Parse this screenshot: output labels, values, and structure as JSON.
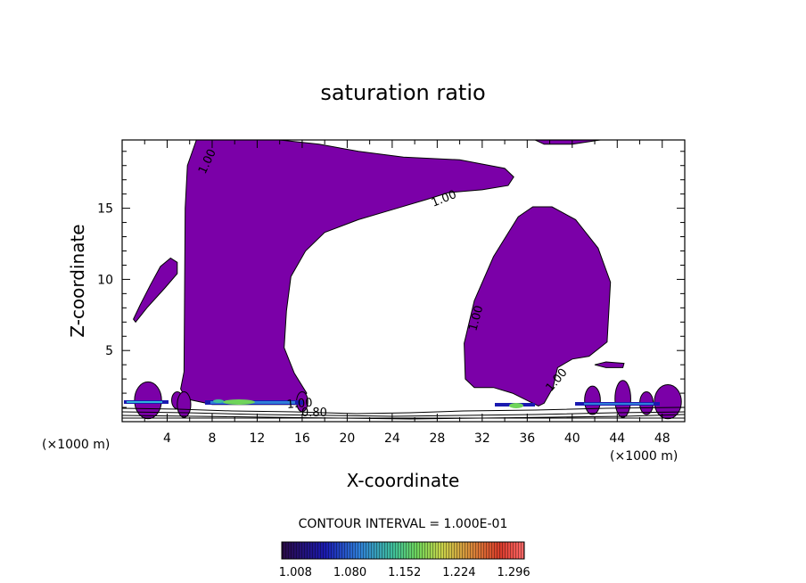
{
  "chart_data": {
    "type": "contour",
    "title": "saturation ratio",
    "xlabel": "X-coordinate",
    "ylabel": "Z-coordinate",
    "x_unit": "(×1000 m)",
    "z_unit": "(×1000 m)",
    "xlim": [
      0,
      50
    ],
    "ylim": [
      0,
      19.8
    ],
    "x_ticks": [
      "4",
      "8",
      "12",
      "16",
      "20",
      "24",
      "28",
      "32",
      "36",
      "40",
      "44",
      "48"
    ],
    "y_ticks": [
      "5",
      "10",
      "15"
    ],
    "contour_interval_text": "CONTOUR INTERVAL = 1.000E-01",
    "contour_labels": [
      "1.00",
      "1.00",
      "1.00",
      "1.00",
      "1.00",
      "0.80"
    ],
    "fill_color": "#7b00a8",
    "colorbar": {
      "ticks": [
        "1.008",
        "1.080",
        "1.152",
        "1.224",
        "1.296"
      ],
      "range": [
        0.99,
        1.31
      ]
    },
    "supersaturated_regions": [
      {
        "name": "main-plume",
        "polygon": [
          [
            5.5,
            3.5
          ],
          [
            5.6,
            15
          ],
          [
            5.8,
            18
          ],
          [
            6.6,
            19.8
          ],
          [
            14,
            19.8
          ],
          [
            17.5,
            19.5
          ],
          [
            21,
            19
          ],
          [
            25,
            18.6
          ],
          [
            30,
            18.4
          ],
          [
            34,
            17.8
          ],
          [
            34.8,
            17.2
          ],
          [
            34.3,
            16.6
          ],
          [
            32,
            16.3
          ],
          [
            29,
            16.1
          ],
          [
            27,
            15.6
          ],
          [
            24,
            14.9
          ],
          [
            21,
            14.2
          ],
          [
            18,
            13.3
          ],
          [
            16.3,
            12
          ],
          [
            15,
            10.2
          ],
          [
            14.6,
            7.8
          ],
          [
            14.4,
            5.2
          ],
          [
            15.3,
            3.4
          ],
          [
            16.4,
            2
          ],
          [
            15.5,
            1.2
          ],
          [
            8,
            1.2
          ],
          [
            5.7,
            1.6
          ],
          [
            5.2,
            2.3
          ]
        ]
      },
      {
        "name": "right-plume",
        "polygon": [
          [
            30.5,
            3
          ],
          [
            30.4,
            5.5
          ],
          [
            31.3,
            8.5
          ],
          [
            33,
            11.6
          ],
          [
            35.2,
            14.4
          ],
          [
            36.5,
            15.1
          ],
          [
            38.2,
            15.1
          ],
          [
            40.3,
            14.2
          ],
          [
            42.3,
            12.2
          ],
          [
            43.4,
            9.8
          ],
          [
            43.1,
            5.6
          ],
          [
            41.5,
            4.6
          ],
          [
            40,
            4.4
          ],
          [
            38.7,
            3.8
          ],
          [
            38.3,
            2.4
          ],
          [
            37.5,
            1.3
          ],
          [
            37,
            1.1
          ],
          [
            34.7,
            2
          ],
          [
            33,
            2.4
          ],
          [
            31.3,
            2.4
          ]
        ]
      },
      {
        "name": "left-blob",
        "polygon": [
          [
            1,
            7.2
          ],
          [
            1.6,
            8.2
          ],
          [
            2.5,
            9.6
          ],
          [
            3.4,
            10.9
          ],
          [
            4.3,
            11.5
          ],
          [
            4.9,
            11.2
          ],
          [
            4.9,
            10.4
          ],
          [
            3.8,
            9.4
          ],
          [
            2.2,
            8
          ],
          [
            1.2,
            7
          ]
        ]
      },
      {
        "name": "top-right-sliver",
        "polygon": [
          [
            36.7,
            19.8
          ],
          [
            42.5,
            19.8
          ],
          [
            40,
            19.5
          ],
          [
            37.5,
            19.5
          ]
        ]
      },
      {
        "name": "small-lens",
        "polygon": [
          [
            42,
            4
          ],
          [
            43,
            3.8
          ],
          [
            44.5,
            3.8
          ],
          [
            44.6,
            4.1
          ],
          [
            43,
            4.2
          ]
        ]
      }
    ]
  }
}
